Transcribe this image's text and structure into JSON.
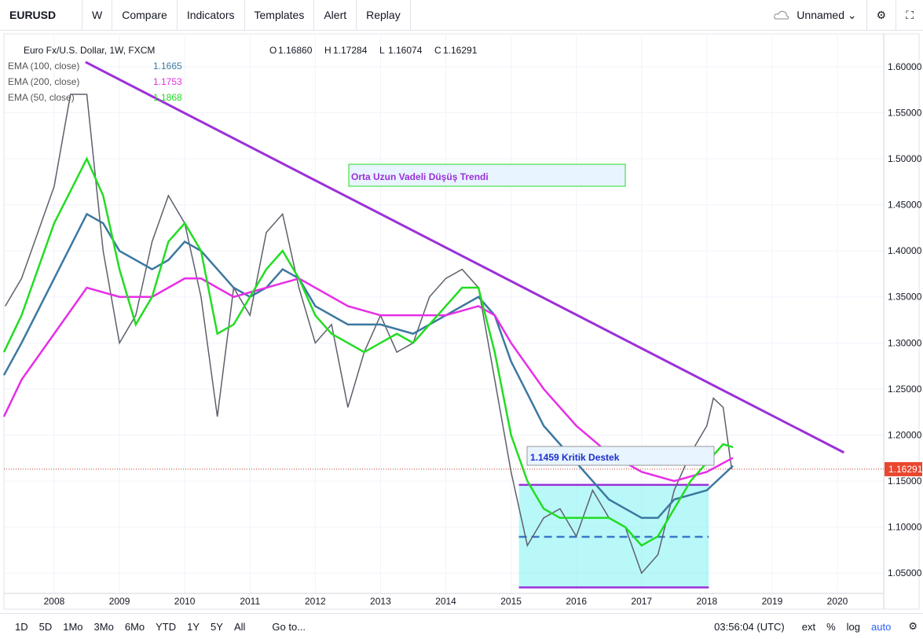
{
  "toolbar": {
    "symbol": "EURUSD",
    "interval": "W",
    "items": [
      "Compare",
      "Indicators",
      "Templates",
      "Alert",
      "Replay"
    ],
    "layout": "Unnamed"
  },
  "bottom_bar": {
    "ranges": [
      "1D",
      "5D",
      "1Mo",
      "3Mo",
      "6Mo",
      "YTD",
      "1Y",
      "5Y",
      "All"
    ],
    "goto": "Go to...",
    "clock": "03:56:04 (UTC)",
    "options": [
      "ext",
      "%",
      "log",
      "auto"
    ]
  },
  "chart_data": {
    "type": "line",
    "title": "Euro Fx/U.S. Dollar, 1W, FXCM",
    "ohlc": [
      {
        "key": "O",
        "text": "1.16860"
      },
      {
        "key": "H",
        "text": "1.17284"
      },
      {
        "key": "L",
        "text": "1.16074"
      },
      {
        "key": "C",
        "text": "1.16291"
      }
    ],
    "xlim": [
      2007.23,
      2020.71
    ],
    "xticks": [
      2008,
      2009,
      2010,
      2011,
      2012,
      2013,
      2014,
      2015,
      2016,
      2017,
      2018,
      2019,
      2020
    ],
    "ylim": [
      1.028,
      1.634
    ],
    "yticks": [
      {
        "value": 1.05,
        "label": "1.05000"
      },
      {
        "value": 1.1,
        "label": "1.10000"
      },
      {
        "value": 1.15,
        "label": "1.15000"
      },
      {
        "value": 1.2,
        "label": "1.20000"
      },
      {
        "value": 1.25,
        "label": "1.25000"
      },
      {
        "value": 1.3,
        "label": "1.30000"
      },
      {
        "value": 1.35,
        "label": "1.35000"
      },
      {
        "value": 1.4,
        "label": "1.40000"
      },
      {
        "value": 1.45,
        "label": "1.45000"
      },
      {
        "value": 1.5,
        "label": "1.50000"
      },
      {
        "value": 1.55,
        "label": "1.55000"
      },
      {
        "value": 1.6,
        "label": "1.60000"
      }
    ],
    "grid": true,
    "price": {
      "color": "#5d606b",
      "x": [
        2007.25,
        2007.5,
        2007.75,
        2008.0,
        2008.25,
        2008.5,
        2008.75,
        2009.0,
        2009.25,
        2009.5,
        2009.75,
        2010.0,
        2010.25,
        2010.5,
        2010.75,
        2011.0,
        2011.25,
        2011.5,
        2011.75,
        2012.0,
        2012.25,
        2012.5,
        2012.75,
        2013.0,
        2013.25,
        2013.5,
        2013.75,
        2014.0,
        2014.25,
        2014.5,
        2014.75,
        2015.0,
        2015.25,
        2015.5,
        2015.75,
        2016.0,
        2016.25,
        2016.5,
        2016.75,
        2017.0,
        2017.25,
        2017.5,
        2017.75,
        2018.0,
        2018.1,
        2018.25,
        2018.38
      ],
      "values": [
        1.34,
        1.37,
        1.42,
        1.47,
        1.57,
        1.57,
        1.4,
        1.3,
        1.33,
        1.41,
        1.46,
        1.43,
        1.35,
        1.22,
        1.36,
        1.33,
        1.42,
        1.44,
        1.36,
        1.3,
        1.32,
        1.23,
        1.29,
        1.33,
        1.29,
        1.3,
        1.35,
        1.37,
        1.38,
        1.36,
        1.26,
        1.16,
        1.08,
        1.11,
        1.12,
        1.09,
        1.14,
        1.11,
        1.1,
        1.05,
        1.07,
        1.14,
        1.18,
        1.21,
        1.24,
        1.23,
        1.163
      ]
    },
    "series": [
      {
        "name": "EMA (100, close)",
        "last": 1.1665,
        "color": "#3c78a0",
        "x": [
          2007.23,
          2007.5,
          2008.0,
          2008.5,
          2008.75,
          2009.0,
          2009.25,
          2009.5,
          2009.75,
          2010.0,
          2010.25,
          2010.5,
          2010.75,
          2011.0,
          2011.25,
          2011.5,
          2011.75,
          2012.0,
          2012.5,
          2013.0,
          2013.5,
          2014.0,
          2014.5,
          2014.75,
          2015.0,
          2015.5,
          2016.0,
          2016.5,
          2017.0,
          2017.25,
          2017.5,
          2018.0,
          2018.4
        ],
        "values": [
          1.265,
          1.3,
          1.37,
          1.44,
          1.43,
          1.4,
          1.39,
          1.38,
          1.39,
          1.41,
          1.4,
          1.38,
          1.36,
          1.35,
          1.36,
          1.38,
          1.37,
          1.34,
          1.32,
          1.32,
          1.31,
          1.33,
          1.35,
          1.33,
          1.28,
          1.21,
          1.17,
          1.13,
          1.11,
          1.11,
          1.13,
          1.14,
          1.1665
        ]
      },
      {
        "name": "EMA (200, close)",
        "last": 1.1753,
        "color": "#e62ee6",
        "x": [
          2007.23,
          2007.5,
          2008.0,
          2008.5,
          2009.0,
          2009.5,
          2010.0,
          2010.25,
          2010.75,
          2011.25,
          2011.75,
          2012.5,
          2013.0,
          2013.5,
          2014.0,
          2014.5,
          2014.75,
          2015.0,
          2015.5,
          2016.0,
          2016.5,
          2017.0,
          2017.5,
          2018.0,
          2018.4
        ],
        "values": [
          1.22,
          1.26,
          1.31,
          1.36,
          1.35,
          1.35,
          1.37,
          1.37,
          1.35,
          1.36,
          1.37,
          1.34,
          1.33,
          1.33,
          1.33,
          1.34,
          1.33,
          1.3,
          1.25,
          1.21,
          1.18,
          1.16,
          1.15,
          1.16,
          1.1753
        ]
      },
      {
        "name": "EMA (50, close)",
        "last": 1.1868,
        "color": "#22dd22",
        "x": [
          2007.23,
          2007.5,
          2008.0,
          2008.5,
          2008.75,
          2009.0,
          2009.25,
          2009.5,
          2009.75,
          2010.0,
          2010.25,
          2010.5,
          2010.75,
          2011.0,
          2011.25,
          2011.5,
          2011.75,
          2012.0,
          2012.25,
          2012.5,
          2012.75,
          2013.0,
          2013.25,
          2013.5,
          2013.75,
          2014.0,
          2014.25,
          2014.5,
          2014.75,
          2015.0,
          2015.25,
          2015.5,
          2015.75,
          2016.0,
          2016.25,
          2016.5,
          2016.75,
          2017.0,
          2017.25,
          2017.5,
          2017.75,
          2018.0,
          2018.25,
          2018.4
        ],
        "values": [
          1.29,
          1.33,
          1.43,
          1.5,
          1.46,
          1.38,
          1.32,
          1.35,
          1.41,
          1.43,
          1.4,
          1.31,
          1.32,
          1.35,
          1.38,
          1.4,
          1.37,
          1.33,
          1.31,
          1.3,
          1.29,
          1.3,
          1.31,
          1.3,
          1.32,
          1.34,
          1.36,
          1.36,
          1.29,
          1.2,
          1.15,
          1.12,
          1.11,
          1.11,
          1.11,
          1.11,
          1.1,
          1.08,
          1.09,
          1.12,
          1.15,
          1.17,
          1.19,
          1.1868
        ]
      }
    ],
    "current_price": 1.16291,
    "trendline": {
      "label": "Orta Uzun Vadeli Düşüş Trendi",
      "color": "#9b30d9",
      "x": [
        2008.48,
        2020.1
      ],
      "values": [
        1.605,
        1.181
      ]
    },
    "support_box": {
      "label": "1.1459 Kritik Destek",
      "x": [
        2015.12,
        2018.03
      ],
      "values": [
        1.0345,
        1.1459
      ],
      "mid": 1.0895
    }
  }
}
